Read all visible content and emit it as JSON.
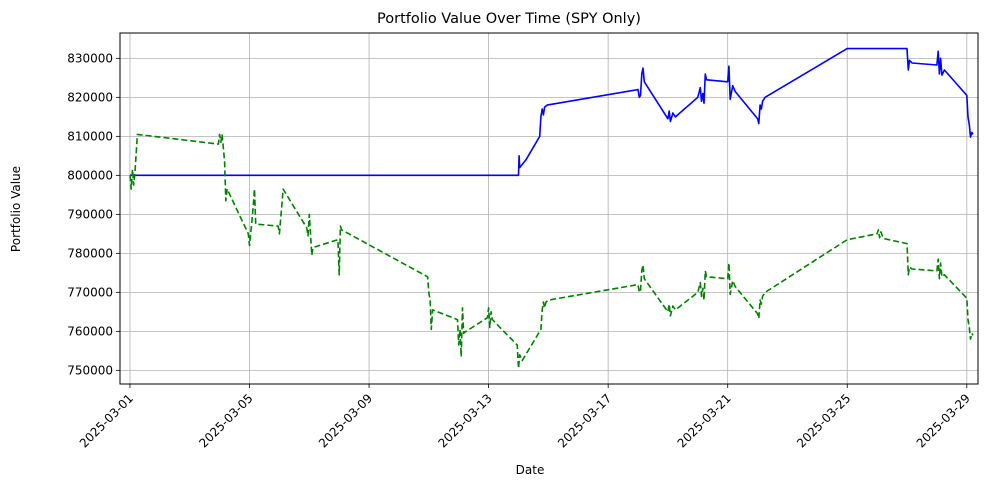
{
  "chart_data": {
    "type": "line",
    "title": "Portfolio Value Over Time (SPY Only)",
    "xlabel": "Date",
    "ylabel": "Portfolio Value",
    "xlim": [
      "2025-02-28T16:00",
      "2025-03-29T09:00"
    ],
    "ylim": [
      746500,
      836500
    ],
    "x_ticks": [
      "2025-03-01",
      "2025-03-05",
      "2025-03-09",
      "2025-03-13",
      "2025-03-17",
      "2025-03-21",
      "2025-03-25",
      "2025-03-29"
    ],
    "y_ticks": [
      750000,
      760000,
      770000,
      780000,
      790000,
      800000,
      810000,
      820000,
      830000
    ],
    "grid": true,
    "series": [
      {
        "color": "#0000ff",
        "style": "solid",
        "points": [
          [
            "2025-03-01T00:00",
            800000
          ],
          [
            "2025-03-14T00:00",
            800000
          ],
          [
            "2025-03-14T00:30",
            805000
          ],
          [
            "2025-03-14T01:00",
            802000
          ],
          [
            "2025-03-14T06:00",
            804000
          ],
          [
            "2025-03-14T17:00",
            810000
          ],
          [
            "2025-03-14T18:00",
            815000
          ],
          [
            "2025-03-14T19:00",
            817000
          ],
          [
            "2025-03-14T20:00",
            815500
          ],
          [
            "2025-03-14T21:00",
            817500
          ],
          [
            "2025-03-14T23:00",
            818000
          ],
          [
            "2025-03-18T00:00",
            822000
          ],
          [
            "2025-03-18T01:00",
            820000
          ],
          [
            "2025-03-18T02:00",
            820500
          ],
          [
            "2025-03-18T03:00",
            826000
          ],
          [
            "2025-03-18T04:00",
            827500
          ],
          [
            "2025-03-18T05:00",
            824000
          ],
          [
            "2025-03-19T00:00",
            814500
          ],
          [
            "2025-03-19T01:00",
            816500
          ],
          [
            "2025-03-19T02:00",
            813800
          ],
          [
            "2025-03-19T04:00",
            816000
          ],
          [
            "2025-03-19T06:00",
            815000
          ],
          [
            "2025-03-20T00:00",
            820000
          ],
          [
            "2025-03-20T02:00",
            822500
          ],
          [
            "2025-03-20T03:00",
            819000
          ],
          [
            "2025-03-20T04:00",
            821000
          ],
          [
            "2025-03-20T05:00",
            818500
          ],
          [
            "2025-03-20T06:00",
            826000
          ],
          [
            "2025-03-20T07:00",
            824500
          ],
          [
            "2025-03-21T00:00",
            824000
          ],
          [
            "2025-03-21T01:00",
            828000
          ],
          [
            "2025-03-21T02:00",
            819500
          ],
          [
            "2025-03-21T04:00",
            823000
          ],
          [
            "2025-03-21T06:00",
            821500
          ],
          [
            "2025-03-22T00:00",
            814500
          ],
          [
            "2025-03-22T01:00",
            813300
          ],
          [
            "2025-03-22T02:00",
            818000
          ],
          [
            "2025-03-22T03:00",
            817000
          ],
          [
            "2025-03-22T04:00",
            819000
          ],
          [
            "2025-03-22T06:00",
            820000
          ],
          [
            "2025-03-25T00:00",
            832500
          ],
          [
            "2025-03-27T00:00",
            832500
          ],
          [
            "2025-03-27T01:00",
            827000
          ],
          [
            "2025-03-27T02:00",
            829500
          ],
          [
            "2025-03-27T04:00",
            828800
          ],
          [
            "2025-03-28T00:00",
            828300
          ],
          [
            "2025-03-28T01:00",
            831800
          ],
          [
            "2025-03-28T02:00",
            826000
          ],
          [
            "2025-03-28T03:00",
            830000
          ],
          [
            "2025-03-28T04:00",
            825700
          ],
          [
            "2025-03-28T06:00",
            827000
          ],
          [
            "2025-03-29T00:00",
            820500
          ],
          [
            "2025-03-29T01:00",
            815000
          ],
          [
            "2025-03-29T02:00",
            813000
          ],
          [
            "2025-03-29T03:00",
            809800
          ],
          [
            "2025-03-29T04:00",
            811000
          ],
          [
            "2025-03-29T05:00",
            810500
          ]
        ]
      },
      {
        "color": "#008000",
        "style": "dashed",
        "points": [
          [
            "2025-03-01T00:00",
            800000
          ],
          [
            "2025-03-01T01:00",
            796500
          ],
          [
            "2025-03-01T02:00",
            801500
          ],
          [
            "2025-03-01T03:00",
            797500
          ],
          [
            "2025-03-01T04:00",
            800500
          ],
          [
            "2025-03-01T06:00",
            810500
          ],
          [
            "2025-03-03T23:00",
            808000
          ],
          [
            "2025-03-04T00:00",
            810500
          ],
          [
            "2025-03-04T01:00",
            808500
          ],
          [
            "2025-03-04T02:00",
            810500
          ],
          [
            "2025-03-04T04:00",
            803500
          ],
          [
            "2025-03-04T05:00",
            793500
          ],
          [
            "2025-03-04T06:00",
            796500
          ],
          [
            "2025-03-04T23:00",
            785000
          ],
          [
            "2025-03-05T00:00",
            782000
          ],
          [
            "2025-03-05T02:00",
            788500
          ],
          [
            "2025-03-05T03:00",
            792000
          ],
          [
            "2025-03-05T04:00",
            796500
          ],
          [
            "2025-03-05T05:00",
            787500
          ],
          [
            "2025-03-05T23:00",
            787000
          ],
          [
            "2025-03-06T00:00",
            785000
          ],
          [
            "2025-03-06T02:00",
            792500
          ],
          [
            "2025-03-06T03:00",
            796500
          ],
          [
            "2025-03-06T22:00",
            786500
          ],
          [
            "2025-03-06T23:00",
            784500
          ],
          [
            "2025-03-07T00:00",
            790000
          ],
          [
            "2025-03-07T02:00",
            779500
          ],
          [
            "2025-03-07T03:00",
            781500
          ],
          [
            "2025-03-07T23:00",
            783500
          ],
          [
            "2025-03-08T00:00",
            774500
          ],
          [
            "2025-03-08T01:00",
            787000
          ],
          [
            "2025-03-08T02:00",
            786000
          ],
          [
            "2025-03-10T23:00",
            774000
          ],
          [
            "2025-03-11T00:00",
            770000
          ],
          [
            "2025-03-11T01:00",
            768000
          ],
          [
            "2025-03-11T02:00",
            760500
          ],
          [
            "2025-03-11T03:00",
            765500
          ],
          [
            "2025-03-11T23:00",
            763000
          ],
          [
            "2025-03-12T00:00",
            756500
          ],
          [
            "2025-03-12T01:00",
            760500
          ],
          [
            "2025-03-12T02:00",
            753500
          ],
          [
            "2025-03-12T03:00",
            766000
          ],
          [
            "2025-03-12T04:00",
            759500
          ],
          [
            "2025-03-12T06:00",
            760000
          ],
          [
            "2025-03-12T23:00",
            763500
          ],
          [
            "2025-03-13T00:00",
            766000
          ],
          [
            "2025-03-13T01:00",
            761000
          ],
          [
            "2025-03-13T02:00",
            765000
          ],
          [
            "2025-03-13T03:00",
            763000
          ],
          [
            "2025-03-13T23:00",
            756500
          ],
          [
            "2025-03-14T00:00",
            750500
          ],
          [
            "2025-03-14T01:00",
            754000
          ],
          [
            "2025-03-14T03:00",
            752500
          ],
          [
            "2025-03-14T18:00",
            760500
          ],
          [
            "2025-03-14T19:00",
            765500
          ],
          [
            "2025-03-14T20:00",
            767500
          ],
          [
            "2025-03-14T21:00",
            766000
          ],
          [
            "2025-03-14T22:00",
            767500
          ],
          [
            "2025-03-15T00:00",
            768000
          ],
          [
            "2025-03-18T00:00",
            772000
          ],
          [
            "2025-03-18T01:00",
            770000
          ],
          [
            "2025-03-18T02:00",
            770500
          ],
          [
            "2025-03-18T03:00",
            775500
          ],
          [
            "2025-03-18T04:00",
            777000
          ],
          [
            "2025-03-18T05:00",
            773500
          ],
          [
            "2025-03-19T00:00",
            765000
          ],
          [
            "2025-03-19T01:00",
            767000
          ],
          [
            "2025-03-19T02:00",
            764000
          ],
          [
            "2025-03-19T04:00",
            766500
          ],
          [
            "2025-03-19T06:00",
            765500
          ],
          [
            "2025-03-20T00:00",
            770000
          ],
          [
            "2025-03-20T02:00",
            772500
          ],
          [
            "2025-03-20T03:00",
            769000
          ],
          [
            "2025-03-20T04:00",
            771000
          ],
          [
            "2025-03-20T05:00",
            768000
          ],
          [
            "2025-03-20T06:00",
            775500
          ],
          [
            "2025-03-20T07:00",
            774000
          ],
          [
            "2025-03-21T00:00",
            773500
          ],
          [
            "2025-03-21T01:00",
            777500
          ],
          [
            "2025-03-21T02:00",
            769500
          ],
          [
            "2025-03-21T04:00",
            773000
          ],
          [
            "2025-03-21T06:00",
            771500
          ],
          [
            "2025-03-22T00:00",
            764500
          ],
          [
            "2025-03-22T01:00",
            763300
          ],
          [
            "2025-03-22T02:00",
            768000
          ],
          [
            "2025-03-22T03:00",
            767000
          ],
          [
            "2025-03-22T04:00",
            769000
          ],
          [
            "2025-03-22T06:00",
            770000
          ],
          [
            "2025-03-25T00:00",
            783500
          ],
          [
            "2025-03-26T00:00",
            785000
          ],
          [
            "2025-03-26T01:00",
            786000
          ],
          [
            "2025-03-26T02:00",
            784000
          ],
          [
            "2025-03-26T03:00",
            785500
          ],
          [
            "2025-03-26T05:00",
            783800
          ],
          [
            "2025-03-27T00:00",
            782500
          ],
          [
            "2025-03-27T01:00",
            774500
          ],
          [
            "2025-03-27T02:00",
            776500
          ],
          [
            "2025-03-27T04:00",
            776000
          ],
          [
            "2025-03-28T00:00",
            775500
          ],
          [
            "2025-03-28T01:00",
            778500
          ],
          [
            "2025-03-28T02:00",
            773500
          ],
          [
            "2025-03-28T03:00",
            777500
          ],
          [
            "2025-03-28T04:00",
            774000
          ],
          [
            "2025-03-28T06:00",
            774500
          ],
          [
            "2025-03-29T00:00",
            768500
          ],
          [
            "2025-03-29T01:00",
            763000
          ],
          [
            "2025-03-29T02:00",
            761000
          ],
          [
            "2025-03-29T03:00",
            758000
          ],
          [
            "2025-03-29T04:00",
            759500
          ],
          [
            "2025-03-29T05:00",
            759000
          ]
        ]
      }
    ]
  }
}
